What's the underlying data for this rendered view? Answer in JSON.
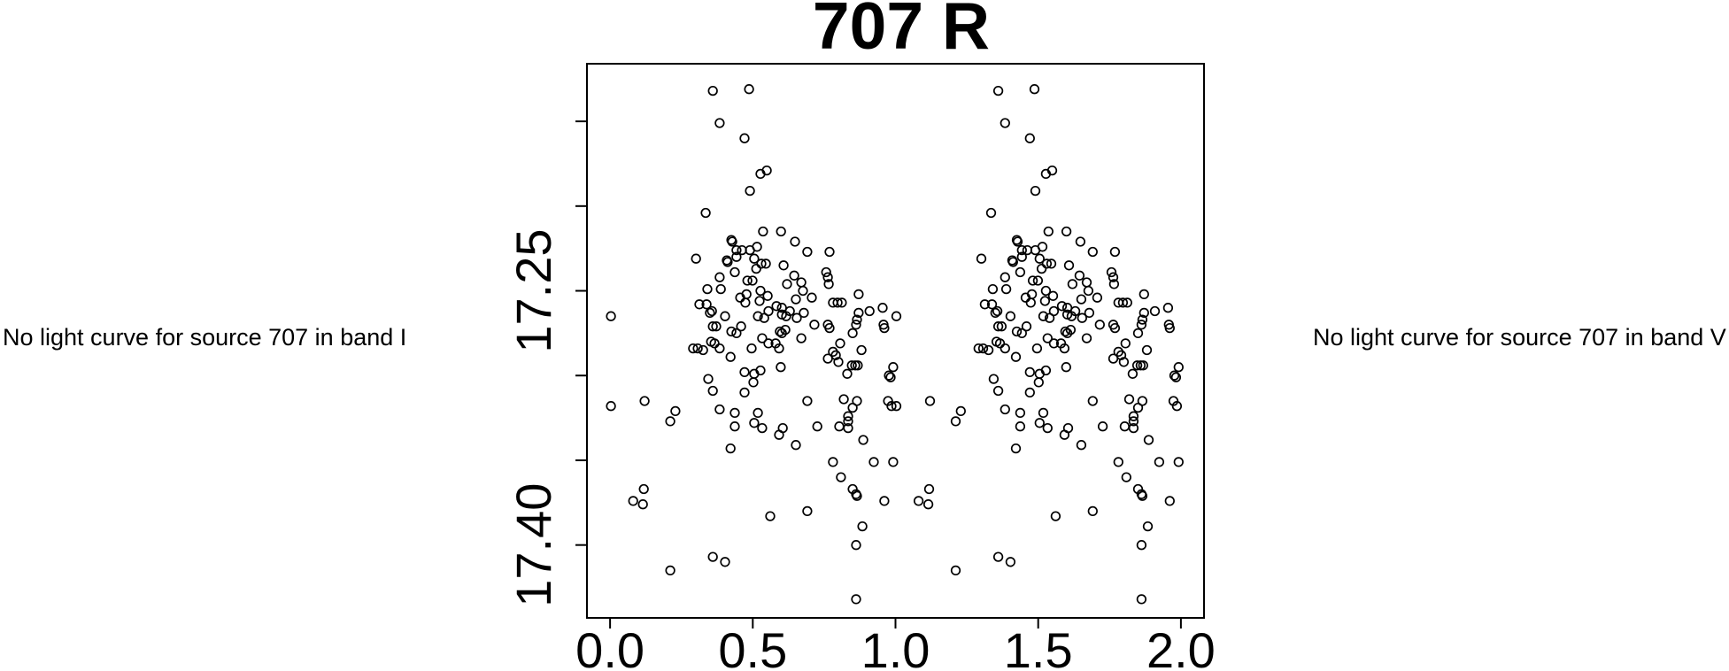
{
  "page": {
    "background": "#ffffff",
    "foreground": "#000000"
  },
  "left_panel": {
    "message": "No light curve for source 707 in band I"
  },
  "right_panel": {
    "message": "No light curve for source 707 in band V"
  },
  "chart_data": {
    "type": "scatter",
    "title": "707 R",
    "xlabel": "",
    "ylabel": "",
    "marker": "open-circle",
    "marker_color": "#000000",
    "grid": false,
    "y_axis_inverted": true,
    "xlim": [
      -0.081,
      2.081
    ],
    "ylim": [
      17.116,
      17.443
    ],
    "xticks": {
      "values": [
        0.0,
        0.5,
        1.0,
        1.5,
        2.0
      ],
      "labels": [
        "0.0",
        "0.5",
        "1.0",
        "1.5",
        "2.0"
      ]
    },
    "yticks": {
      "values": [
        17.15,
        17.2,
        17.25,
        17.3,
        17.35,
        17.4
      ],
      "labels": [
        "",
        "",
        "17.25",
        "",
        "",
        "17.40"
      ]
    },
    "phase_folding_note": "each (phase, mag) point is plotted twice: at phase and phase+1",
    "points_phase_mag": [
      [
        0.36,
        17.132
      ],
      [
        0.487,
        17.131
      ],
      [
        0.384,
        17.151
      ],
      [
        0.471,
        17.16
      ],
      [
        0.527,
        17.181
      ],
      [
        0.549,
        17.179
      ],
      [
        0.49,
        17.191
      ],
      [
        0.335,
        17.204
      ],
      [
        0.536,
        17.215
      ],
      [
        0.599,
        17.215
      ],
      [
        0.425,
        17.22
      ],
      [
        0.428,
        17.221
      ],
      [
        0.648,
        17.221
      ],
      [
        0.443,
        17.226
      ],
      [
        0.462,
        17.226
      ],
      [
        0.49,
        17.226
      ],
      [
        0.515,
        17.224
      ],
      [
        0.691,
        17.227
      ],
      [
        0.769,
        17.227
      ],
      [
        0.301,
        17.231
      ],
      [
        0.505,
        17.231
      ],
      [
        0.53,
        17.234
      ],
      [
        0.546,
        17.234
      ],
      [
        0.409,
        17.232
      ],
      [
        0.412,
        17.233
      ],
      [
        0.443,
        17.23
      ],
      [
        0.608,
        17.235
      ],
      [
        0.512,
        17.237
      ],
      [
        0.437,
        17.239
      ],
      [
        0.757,
        17.239
      ],
      [
        0.384,
        17.242
      ],
      [
        0.645,
        17.241
      ],
      [
        0.763,
        17.242
      ],
      [
        0.481,
        17.244
      ],
      [
        0.499,
        17.244
      ],
      [
        0.67,
        17.245
      ],
      [
        0.62,
        17.246
      ],
      [
        0.766,
        17.246
      ],
      [
        0.341,
        17.249
      ],
      [
        0.388,
        17.249
      ],
      [
        0.527,
        17.25
      ],
      [
        0.676,
        17.25
      ],
      [
        0.478,
        17.252
      ],
      [
        0.871,
        17.252
      ],
      [
        0.552,
        17.253
      ],
      [
        0.456,
        17.254
      ],
      [
        0.707,
        17.254
      ],
      [
        0.651,
        17.255
      ],
      [
        0.524,
        17.256
      ],
      [
        0.474,
        17.257
      ],
      [
        0.781,
        17.257
      ],
      [
        0.797,
        17.257
      ],
      [
        0.812,
        17.257
      ],
      [
        0.313,
        17.258
      ],
      [
        0.338,
        17.258
      ],
      [
        0.583,
        17.259
      ],
      [
        0.602,
        17.26
      ],
      [
        0.955,
        17.26
      ],
      [
        0.35,
        17.263
      ],
      [
        0.357,
        17.262
      ],
      [
        0.63,
        17.262
      ],
      [
        0.871,
        17.263
      ],
      [
        0.909,
        17.262
      ],
      [
        0.679,
        17.263
      ],
      [
        0.602,
        17.264
      ],
      [
        0.003,
        17.265
      ],
      [
        0.403,
        17.265
      ],
      [
        0.518,
        17.265
      ],
      [
        0.617,
        17.265
      ],
      [
        0.54,
        17.266
      ],
      [
        0.555,
        17.262
      ],
      [
        0.654,
        17.266
      ],
      [
        0.865,
        17.267
      ],
      [
        0.862,
        17.27
      ],
      [
        0.716,
        17.27
      ],
      [
        0.763,
        17.27
      ],
      [
        0.958,
        17.27
      ],
      [
        0.36,
        17.271
      ],
      [
        0.372,
        17.271
      ],
      [
        0.459,
        17.271
      ],
      [
        0.769,
        17.272
      ],
      [
        0.961,
        17.272
      ],
      [
        0.614,
        17.273
      ],
      [
        0.595,
        17.274
      ],
      [
        0.425,
        17.274
      ],
      [
        0.443,
        17.275
      ],
      [
        0.602,
        17.275
      ],
      [
        0.85,
        17.275
      ],
      [
        0.533,
        17.278
      ],
      [
        0.67,
        17.278
      ],
      [
        0.354,
        17.28
      ],
      [
        0.366,
        17.281
      ],
      [
        0.555,
        17.281
      ],
      [
        0.58,
        17.281
      ],
      [
        0.806,
        17.281
      ],
      [
        0.291,
        17.284
      ],
      [
        0.307,
        17.284
      ],
      [
        0.384,
        17.284
      ],
      [
        0.496,
        17.284
      ],
      [
        0.592,
        17.284
      ],
      [
        0.326,
        17.285
      ],
      [
        0.881,
        17.285
      ],
      [
        0.781,
        17.286
      ],
      [
        0.791,
        17.288
      ],
      [
        0.422,
        17.289
      ],
      [
        0.763,
        17.29
      ],
      [
        0.8,
        17.292
      ],
      [
        0.847,
        17.294
      ],
      [
        0.859,
        17.294
      ],
      [
        0.868,
        17.294
      ],
      [
        0.598,
        17.295
      ],
      [
        0.992,
        17.295
      ],
      [
        0.471,
        17.298
      ],
      [
        0.505,
        17.299
      ],
      [
        0.527,
        17.297
      ],
      [
        0.831,
        17.299
      ],
      [
        0.977,
        17.3
      ],
      [
        0.983,
        17.301
      ],
      [
        0.502,
        17.304
      ],
      [
        0.344,
        17.302
      ],
      [
        0.36,
        17.309
      ],
      [
        0.471,
        17.31
      ],
      [
        0.819,
        17.314
      ],
      [
        0.121,
        17.315
      ],
      [
        0.691,
        17.315
      ],
      [
        0.865,
        17.315
      ],
      [
        0.974,
        17.315
      ],
      [
        0.003,
        17.318
      ],
      [
        0.986,
        17.318
      ],
      [
        0.85,
        17.319
      ],
      [
        0.384,
        17.32
      ],
      [
        0.229,
        17.321
      ],
      [
        0.437,
        17.322
      ],
      [
        0.518,
        17.322
      ],
      [
        0.834,
        17.324
      ],
      [
        0.211,
        17.327
      ],
      [
        0.505,
        17.328
      ],
      [
        0.834,
        17.327
      ],
      [
        0.437,
        17.33
      ],
      [
        0.726,
        17.33
      ],
      [
        0.803,
        17.33
      ],
      [
        0.533,
        17.331
      ],
      [
        0.605,
        17.331
      ],
      [
        0.834,
        17.331
      ],
      [
        0.592,
        17.335
      ],
      [
        0.887,
        17.338
      ],
      [
        0.651,
        17.341
      ],
      [
        0.422,
        17.343
      ],
      [
        0.781,
        17.351
      ],
      [
        0.924,
        17.351
      ],
      [
        0.992,
        17.351
      ],
      [
        0.809,
        17.36
      ],
      [
        0.118,
        17.367
      ],
      [
        0.85,
        17.367
      ],
      [
        0.862,
        17.37
      ],
      [
        0.865,
        17.371
      ],
      [
        0.081,
        17.374
      ],
      [
        0.115,
        17.376
      ],
      [
        0.961,
        17.374
      ],
      [
        0.691,
        17.38
      ],
      [
        0.561,
        17.383
      ],
      [
        0.884,
        17.389
      ],
      [
        0.862,
        17.4
      ],
      [
        0.36,
        17.407
      ],
      [
        0.403,
        17.41
      ],
      [
        0.211,
        17.415
      ],
      [
        0.862,
        17.432
      ]
    ]
  }
}
